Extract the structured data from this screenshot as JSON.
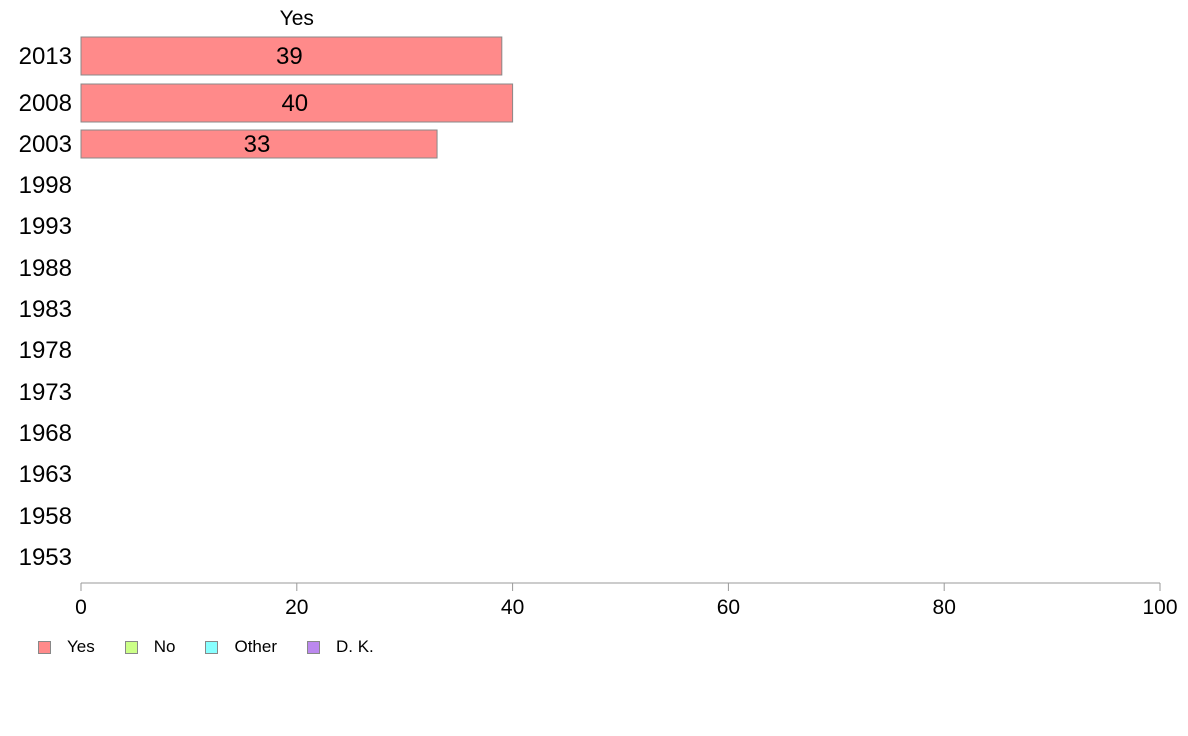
{
  "chart_data": {
    "type": "bar",
    "orientation": "horizontal",
    "stacked": true,
    "title": "Yes",
    "categories": [
      "2013",
      "2008",
      "2003",
      "1998",
      "1993",
      "1988",
      "1983",
      "1978",
      "1973",
      "1968",
      "1963",
      "1958",
      "1953"
    ],
    "series": [
      {
        "name": "Yes",
        "color": "#ff8a8a",
        "values": [
          39,
          40,
          33,
          null,
          null,
          null,
          null,
          null,
          null,
          null,
          null,
          null,
          null
        ]
      },
      {
        "name": "No",
        "color": "#ccff88",
        "values": [
          null,
          null,
          null,
          null,
          null,
          null,
          null,
          null,
          null,
          null,
          null,
          null,
          null
        ]
      },
      {
        "name": "Other",
        "color": "#88ffff",
        "values": [
          null,
          null,
          null,
          null,
          null,
          null,
          null,
          null,
          null,
          null,
          null,
          null,
          null
        ]
      },
      {
        "name": "D. K.",
        "color": "#bb88ee",
        "values": [
          null,
          null,
          null,
          null,
          null,
          null,
          null,
          null,
          null,
          null,
          null,
          null,
          null
        ]
      }
    ],
    "data_labels": [
      "39",
      "40",
      "33"
    ],
    "xlim": [
      0,
      100
    ],
    "xticks": [
      0,
      20,
      40,
      60,
      80,
      100
    ],
    "grid": false,
    "legend_position": "bottom-left"
  }
}
